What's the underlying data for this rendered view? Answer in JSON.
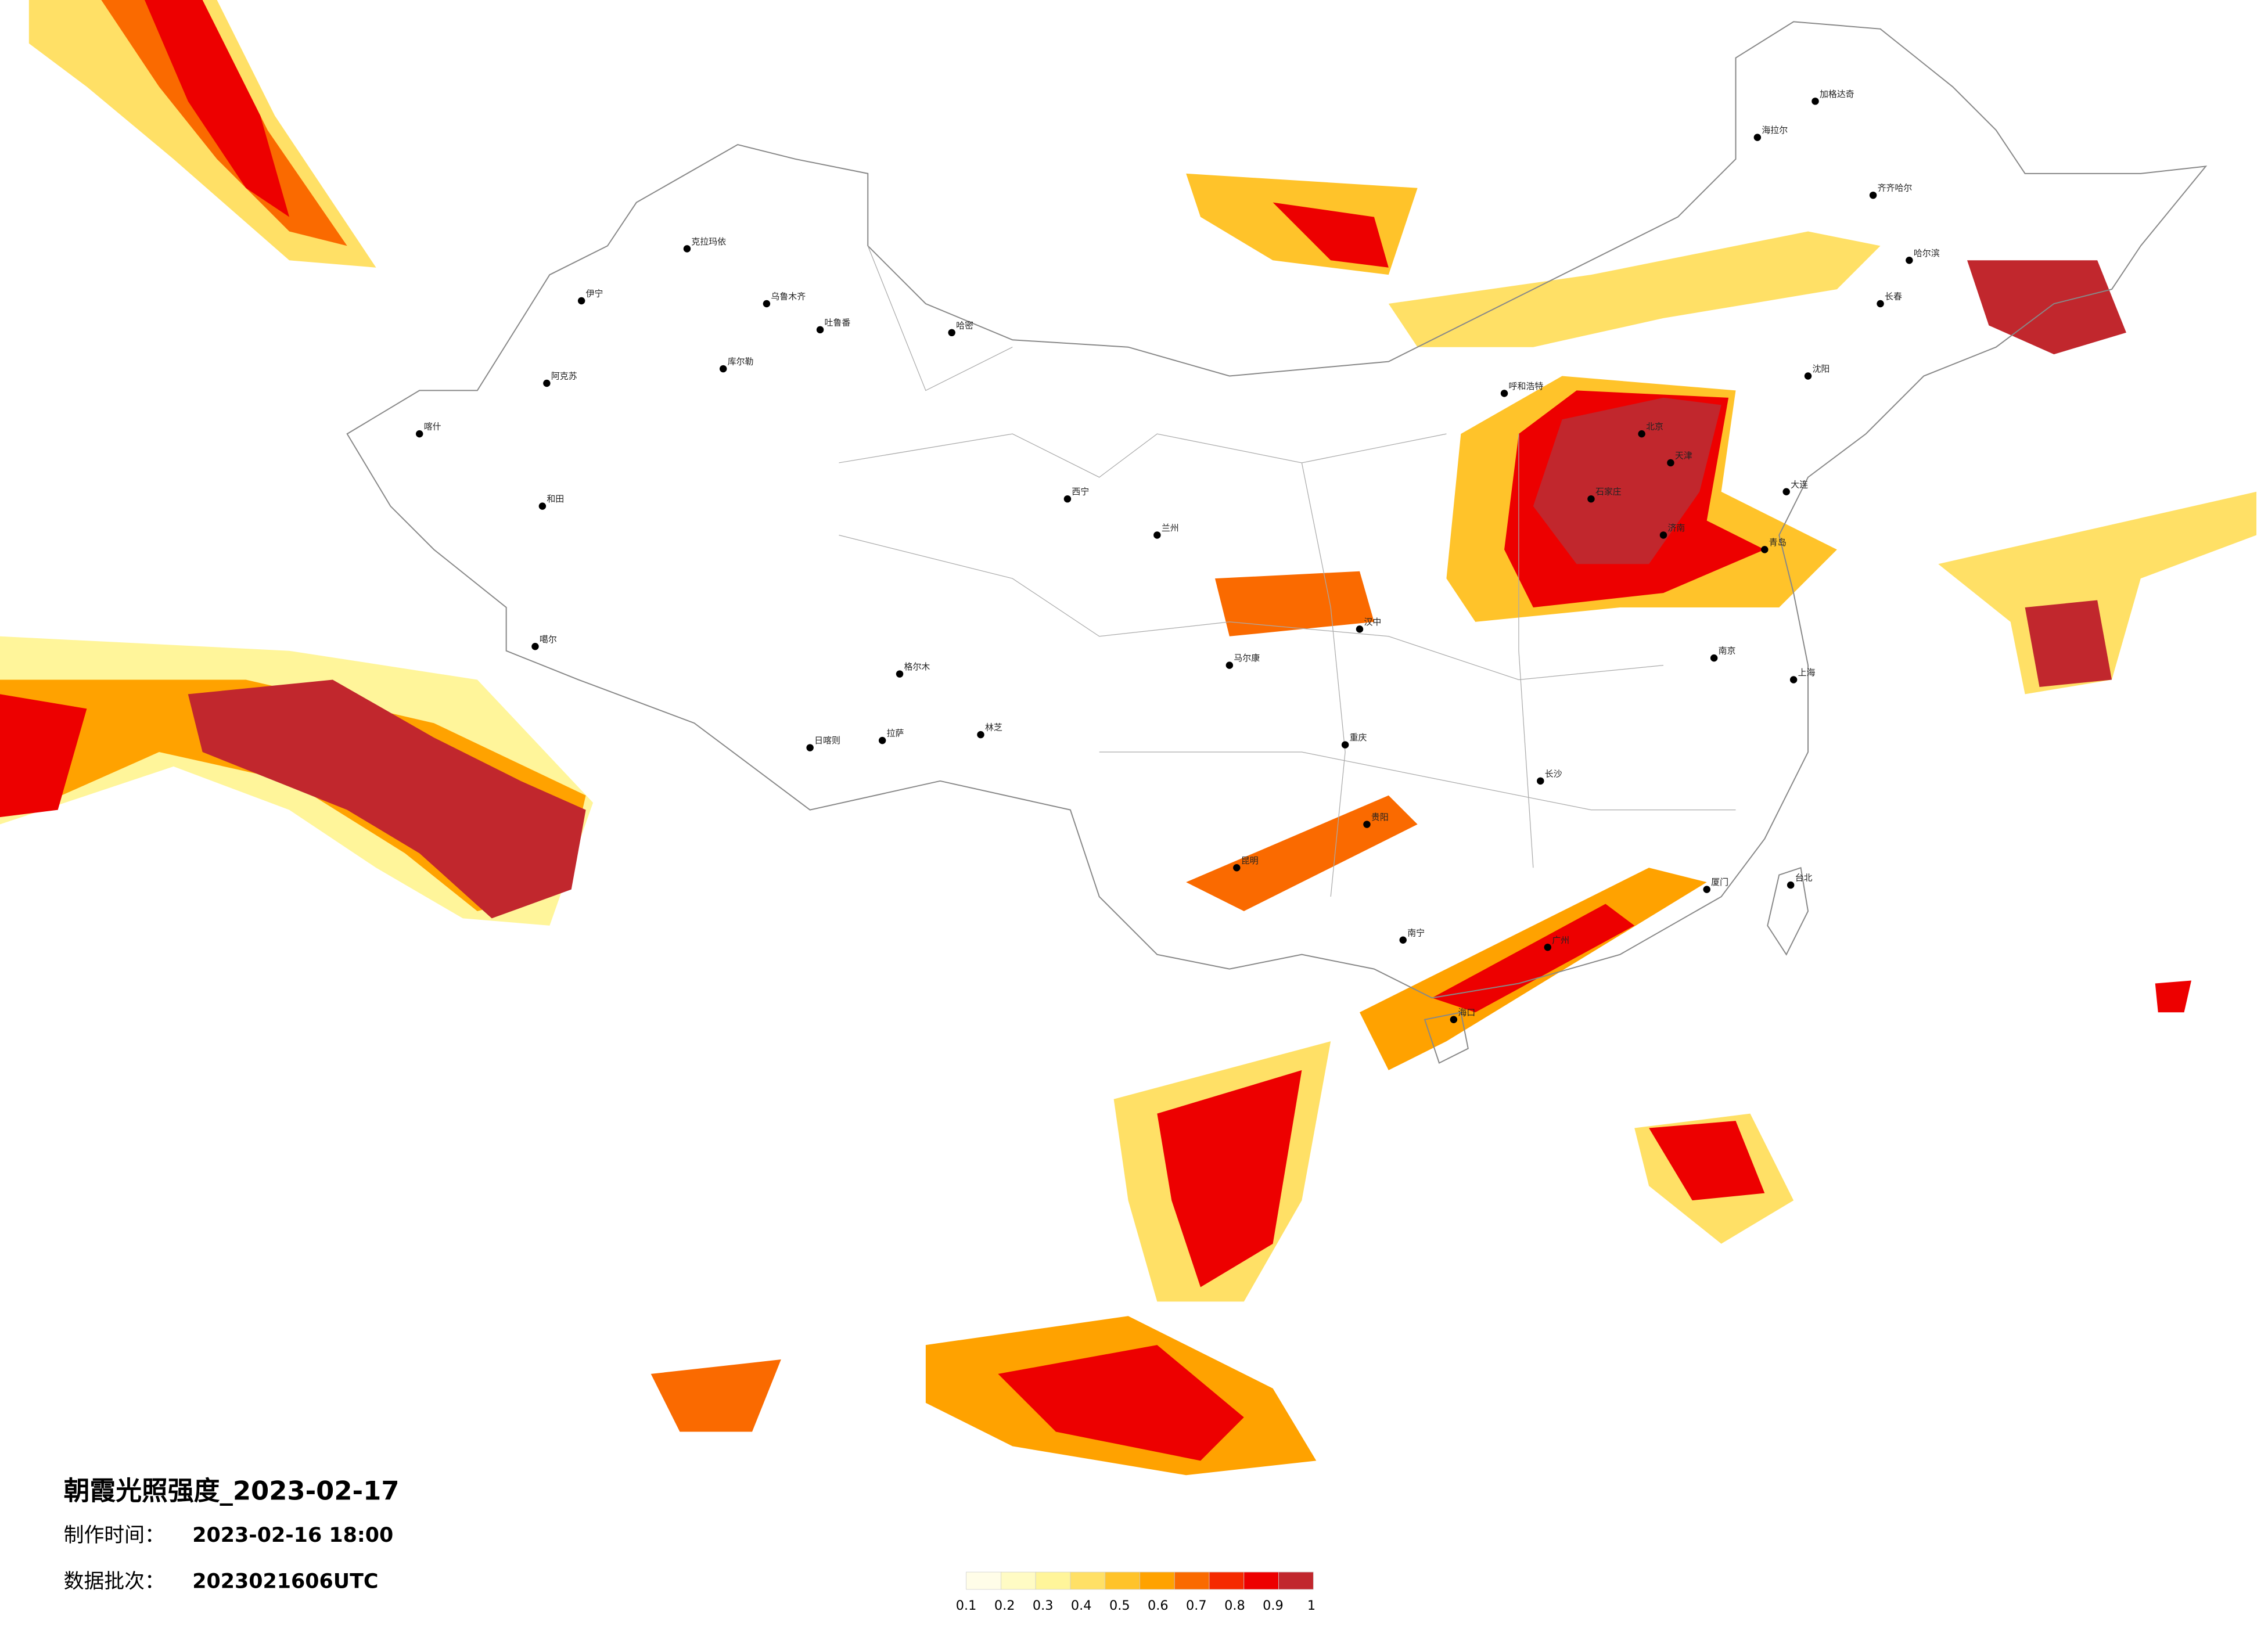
{
  "title": "朝霞光照强度_2023-02-17",
  "made_label": "制作时间：",
  "made_time": "2023-02-16 18:00",
  "batch_label": "数据批次：",
  "batch": "2023021606UTC",
  "legend": {
    "ticks": [
      0.1,
      0.2,
      0.3,
      0.4,
      0.5,
      0.6,
      0.7,
      0.8,
      0.9,
      1
    ],
    "colors": [
      "#fffde8",
      "#fffbc4",
      "#fff59a",
      "#ffe066",
      "#ffc32a",
      "#ffa200",
      "#fa6a00",
      "#f52a00",
      "#ed0000",
      "#c1272d"
    ]
  },
  "cities": [
    "克拉玛依",
    "乌鲁木齐",
    "吐鲁番",
    "哈密",
    "库尔勒",
    "伊宁",
    "阿克苏",
    "喀什",
    "和田",
    "噶尔",
    "日喀则",
    "拉萨",
    "林芝",
    "格尔木",
    "西宁",
    "兰州",
    "马尔康",
    "汉中",
    "重庆",
    "昆明",
    "南宁",
    "海口",
    "广州",
    "厦门",
    "上海",
    "南京",
    "北京",
    "天津",
    "石家庄",
    "济南",
    "沈阳",
    "长春",
    "哈尔滨",
    "齐齐哈尔",
    "海拉尔",
    "加格达奇",
    "呼和浩特",
    "长沙",
    "贵阳",
    "台北",
    "大连",
    "青岛"
  ]
}
